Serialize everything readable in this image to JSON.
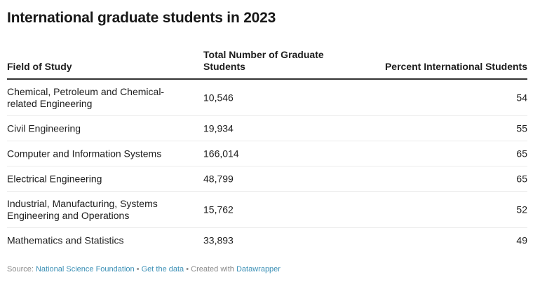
{
  "title": "International graduate students in 2023",
  "table": {
    "headers": {
      "field": "Field of Study",
      "total": "Total Number of Graduate Students",
      "percent": "Percent International Students"
    },
    "rows": [
      {
        "field": "Chemical, Petroleum and Chemical-related Engineering",
        "total": "10,546",
        "percent": "54"
      },
      {
        "field": "Civil Engineering",
        "total": "19,934",
        "percent": "55"
      },
      {
        "field": "Computer and Information Systems",
        "total": "166,014",
        "percent": "65"
      },
      {
        "field": "Electrical Engineering",
        "total": "48,799",
        "percent": "65"
      },
      {
        "field": "Industrial, Manufacturing, Systems Engineering and Operations",
        "total": "15,762",
        "percent": "52"
      },
      {
        "field": "Mathematics and Statistics",
        "total": "33,893",
        "percent": "49"
      }
    ]
  },
  "chart_data": {
    "type": "table",
    "title": "International graduate students in 2023",
    "columns": [
      "Field of Study",
      "Total Number of Graduate Students",
      "Percent International Students"
    ],
    "rows": [
      [
        "Chemical, Petroleum and Chemical-related Engineering",
        10546,
        54
      ],
      [
        "Civil Engineering",
        19934,
        55
      ],
      [
        "Computer and Information Systems",
        166014,
        65
      ],
      [
        "Electrical Engineering",
        48799,
        65
      ],
      [
        "Industrial, Manufacturing, Systems Engineering and Operations",
        15762,
        52
      ],
      [
        "Mathematics and Statistics",
        33893,
        49
      ]
    ]
  },
  "footer": {
    "source_label": "Source:",
    "source_link": "National Science Foundation",
    "sep1": "•",
    "data_link": "Get the data",
    "sep2": "•",
    "created_label": "Created with",
    "tool_link": "Datawrapper"
  },
  "colors": {
    "link": "#3a8fb5",
    "header_rule": "#333333",
    "row_rule": "#ececec"
  }
}
